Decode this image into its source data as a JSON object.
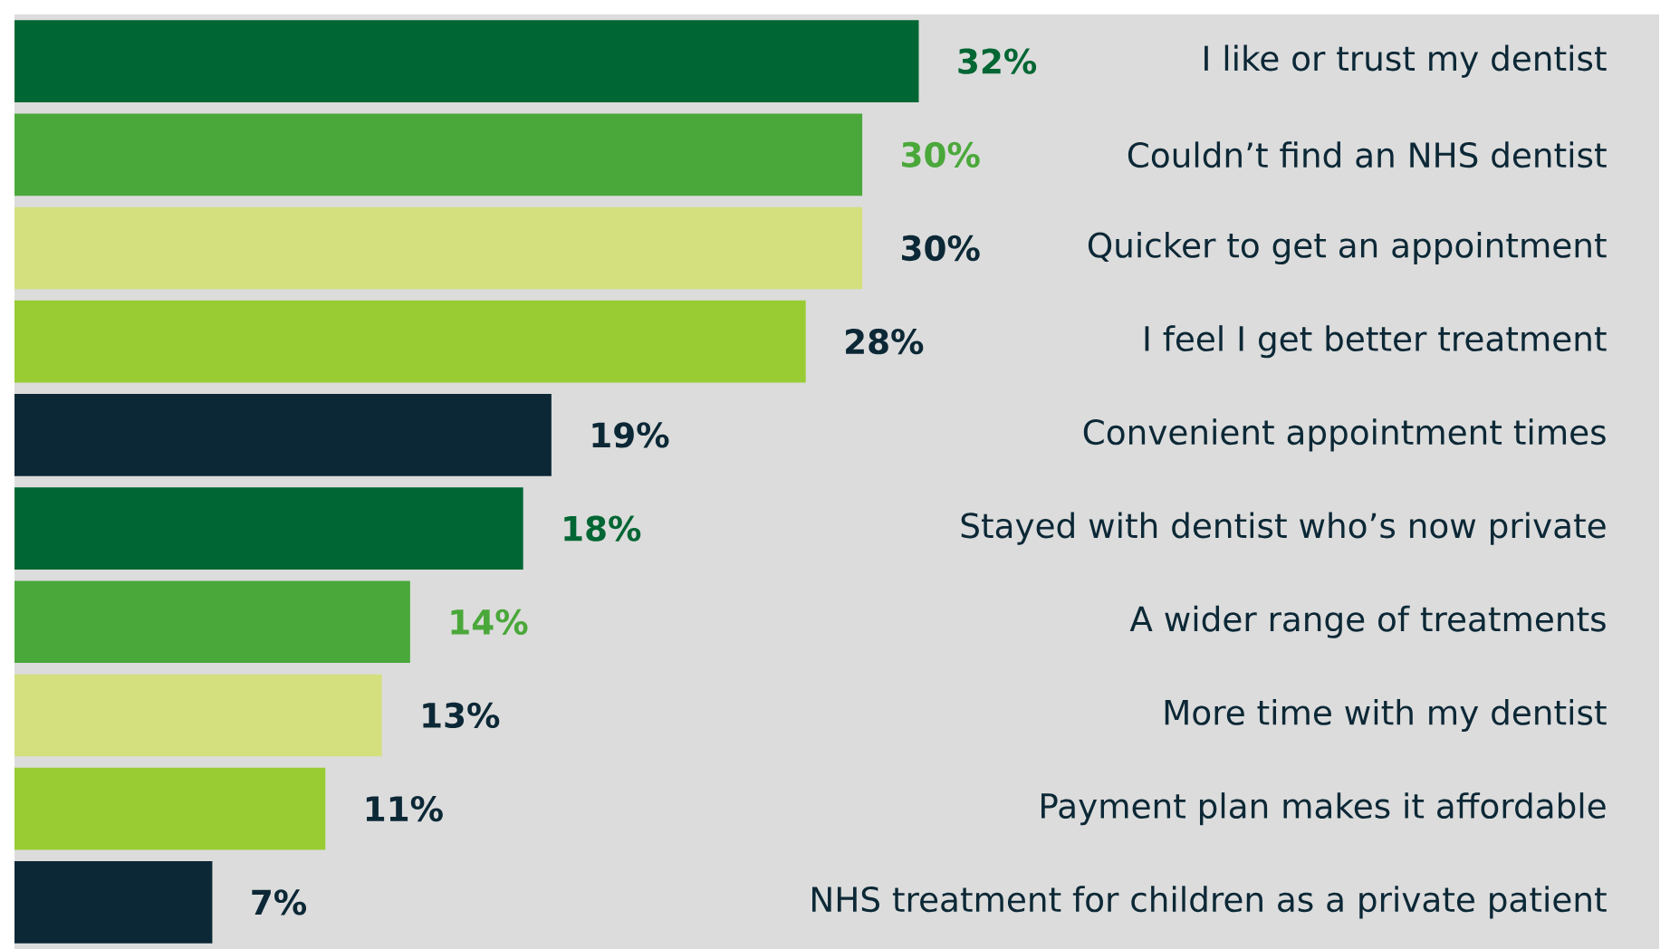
{
  "chart_data": {
    "type": "bar",
    "orientation": "horizontal",
    "categories": [
      "I like or trust my dentist",
      "Couldn’t find an NHS dentist",
      "Quicker to get an appointment",
      "I feel I get better treatment",
      "Convenient appointment times",
      "Stayed with dentist who’s now private",
      "A wider range of treatments",
      "More time with my dentist",
      "Payment plan makes it affordable",
      "NHS treatment for children as a private patient"
    ],
    "values": [
      32,
      30,
      30,
      28,
      19,
      18,
      14,
      13,
      11,
      7
    ],
    "value_labels": [
      "32%",
      "30%",
      "30%",
      "28%",
      "19%",
      "18%",
      "14%",
      "13%",
      "11%",
      "7%"
    ],
    "colors": [
      "#006633",
      "#4aa83a",
      "#d4df7e",
      "#99cc33",
      "#0c2836",
      "#006633",
      "#4aa83a",
      "#d4df7e",
      "#99cc33",
      "#0c2836"
    ],
    "xlim": [
      0,
      58.2
    ],
    "tick_labels": "y"
  }
}
